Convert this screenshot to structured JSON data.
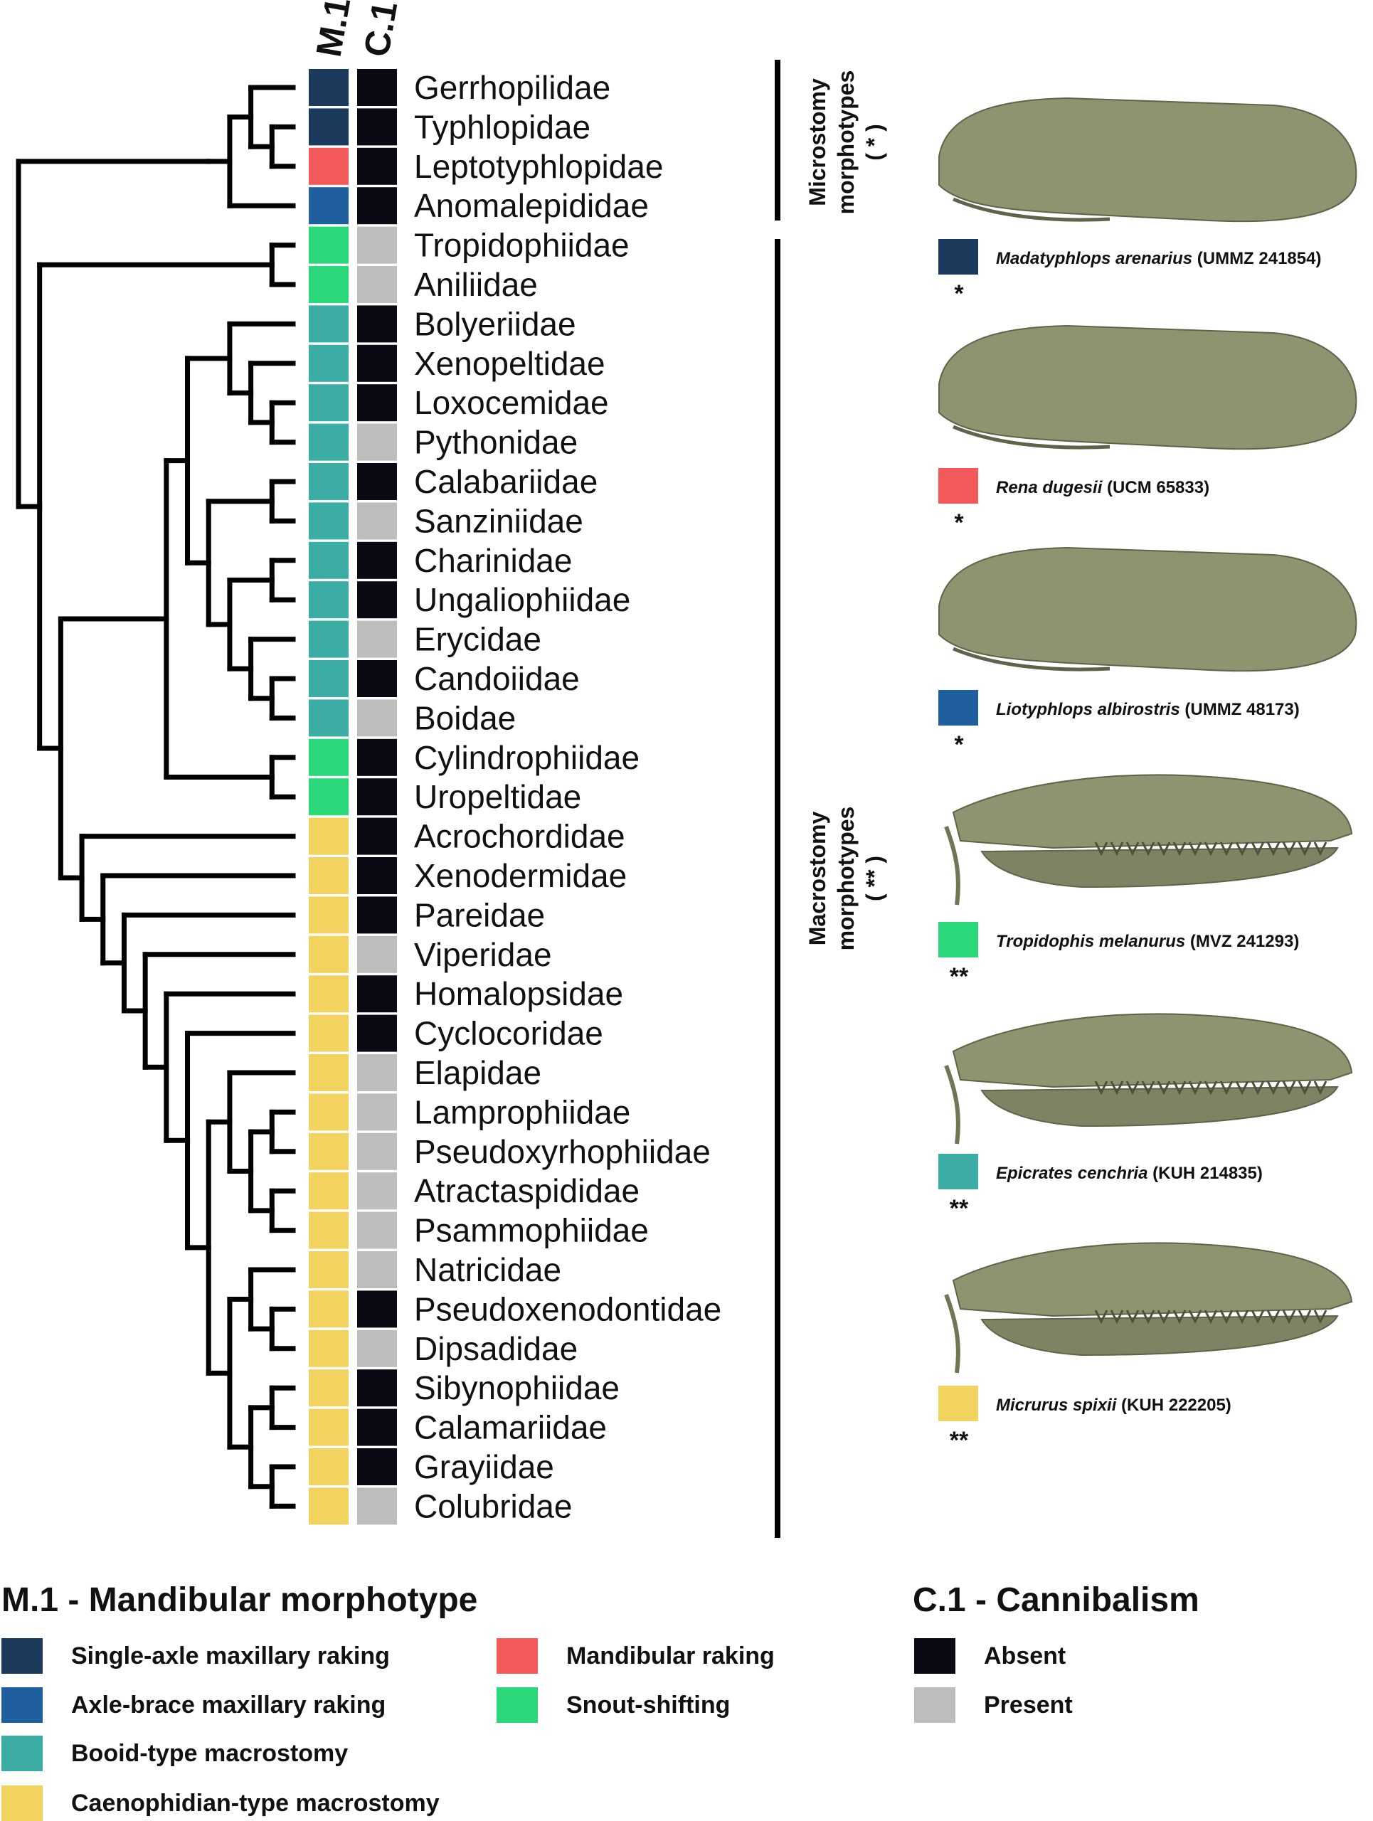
{
  "columns": {
    "m1": "M.1",
    "c1": "C.1"
  },
  "colors": {
    "single_axle": "#1b3a5c",
    "axle_brace": "#1f5f9e",
    "booid": "#3bada5",
    "caenophidian": "#f2d35f",
    "mandibular": "#f4595a",
    "snout": "#2ad87a",
    "absent": "#0a0a14",
    "present": "#bdbdbd",
    "skull": "#8e9470"
  },
  "taxa": [
    {
      "name": "Gerrhopilidae",
      "m1": "single_axle",
      "c1": "absent"
    },
    {
      "name": "Typhlopidae",
      "m1": "single_axle",
      "c1": "absent"
    },
    {
      "name": "Leptotyphlopidae",
      "m1": "mandibular",
      "c1": "absent"
    },
    {
      "name": "Anomalepididae",
      "m1": "axle_brace",
      "c1": "absent"
    },
    {
      "name": "Tropidophiidae",
      "m1": "snout",
      "c1": "present"
    },
    {
      "name": "Aniliidae",
      "m1": "snout",
      "c1": "present"
    },
    {
      "name": "Bolyeriidae",
      "m1": "booid",
      "c1": "absent"
    },
    {
      "name": "Xenopeltidae",
      "m1": "booid",
      "c1": "absent"
    },
    {
      "name": "Loxocemidae",
      "m1": "booid",
      "c1": "absent"
    },
    {
      "name": "Pythonidae",
      "m1": "booid",
      "c1": "present"
    },
    {
      "name": "Calabariidae",
      "m1": "booid",
      "c1": "absent"
    },
    {
      "name": "Sanziniidae",
      "m1": "booid",
      "c1": "present"
    },
    {
      "name": "Charinidae",
      "m1": "booid",
      "c1": "absent"
    },
    {
      "name": "Ungaliophiidae",
      "m1": "booid",
      "c1": "absent"
    },
    {
      "name": "Erycidae",
      "m1": "booid",
      "c1": "present"
    },
    {
      "name": "Candoiidae",
      "m1": "booid",
      "c1": "absent"
    },
    {
      "name": "Boidae",
      "m1": "booid",
      "c1": "present"
    },
    {
      "name": "Cylindrophiidae",
      "m1": "snout",
      "c1": "absent"
    },
    {
      "name": "Uropeltidae",
      "m1": "snout",
      "c1": "absent"
    },
    {
      "name": "Acrochordidae",
      "m1": "caenophidian",
      "c1": "absent"
    },
    {
      "name": "Xenodermidae",
      "m1": "caenophidian",
      "c1": "absent"
    },
    {
      "name": "Pareidae",
      "m1": "caenophidian",
      "c1": "absent"
    },
    {
      "name": "Viperidae",
      "m1": "caenophidian",
      "c1": "present"
    },
    {
      "name": "Homalopsidae",
      "m1": "caenophidian",
      "c1": "absent"
    },
    {
      "name": "Cyclocoridae",
      "m1": "caenophidian",
      "c1": "absent"
    },
    {
      "name": "Elapidae",
      "m1": "caenophidian",
      "c1": "present"
    },
    {
      "name": "Lamprophiidae",
      "m1": "caenophidian",
      "c1": "present"
    },
    {
      "name": "Pseudoxyrhophiidae",
      "m1": "caenophidian",
      "c1": "present"
    },
    {
      "name": "Atractaspididae",
      "m1": "caenophidian",
      "c1": "present"
    },
    {
      "name": "Psammophiidae",
      "m1": "caenophidian",
      "c1": "present"
    },
    {
      "name": "Natricidae",
      "m1": "caenophidian",
      "c1": "present"
    },
    {
      "name": "Pseudoxenodontidae",
      "m1": "caenophidian",
      "c1": "absent"
    },
    {
      "name": "Dipsadidae",
      "m1": "caenophidian",
      "c1": "present"
    },
    {
      "name": "Sibynophiidae",
      "m1": "caenophidian",
      "c1": "absent"
    },
    {
      "name": "Calamariidae",
      "m1": "caenophidian",
      "c1": "absent"
    },
    {
      "name": "Grayiidae",
      "m1": "caenophidian",
      "c1": "absent"
    },
    {
      "name": "Colubridae",
      "m1": "caenophidian",
      "c1": "present"
    }
  ],
  "tree": [
    [
      [
        [
          "Gerrhopilidae",
          [
            "Typhlopidae",
            "Leptotyphlopidae"
          ]
        ],
        "Anomalepididae"
      ]
    ],
    [
      [
        "Tropidophiidae",
        "Aniliidae"
      ],
      [
        [
          [
            [
              "Bolyeriidae",
              [
                "Xenopeltidae",
                [
                  "Loxocemidae",
                  "Pythonidae"
                ]
              ]
            ],
            [
              [
                "Calabariidae",
                "Sanziniidae"
              ],
              [
                [
                  "Charinidae",
                  "Ungaliophiidae"
                ],
                [
                  "Erycidae",
                  [
                    "Candoiidae",
                    "Boidae"
                  ]
                ]
              ]
            ]
          ],
          [
            "Cylindrophiidae",
            "Uropeltidae"
          ]
        ],
        [
          "Acrochordidae",
          [
            "Xenodermidae",
            [
              "Pareidae",
              [
                "Viperidae",
                [
                  "Homalopsidae",
                  [
                    "Cyclocoridae",
                    [
                      [
                        "Elapidae",
                        [
                          [
                            "Lamprophiidae",
                            "Pseudoxyrhophiidae"
                          ],
                          [
                            "Atractaspididae",
                            "Psammophiidae"
                          ]
                        ]
                      ],
                      [
                        [
                          "Natricidae",
                          [
                            "Pseudoxenodontidae",
                            "Dipsadidae"
                          ]
                        ],
                        [
                          [
                            "Sibynophiidae",
                            "Calamariidae"
                          ],
                          [
                            "Grayiidae",
                            "Colubridae"
                          ]
                        ]
                      ]
                    ]
                  ]
                ]
              ]
            ]
          ]
        ]
      ]
    ]
  ],
  "groups": [
    {
      "line1": "Microstomy",
      "line2": "morphotypes",
      "line3": "( * )"
    },
    {
      "line1": "Macrostomy",
      "line2": "morphotypes",
      "line3": "( ** )"
    }
  ],
  "specimens": [
    {
      "species": "Madatyphlops arenarius",
      "code": "(UMMZ 241854)",
      "color": "single_axle",
      "stars": "*"
    },
    {
      "species": "Rena dugesii",
      "code": "(UCM 65833)",
      "color": "mandibular",
      "stars": "*"
    },
    {
      "species": "Liotyphlops albirostris",
      "code": "(UMMZ 48173)",
      "color": "axle_brace",
      "stars": "*"
    },
    {
      "species": "Tropidophis melanurus",
      "code": "(MVZ 241293)",
      "color": "snout",
      "stars": "**"
    },
    {
      "species": "Epicrates cenchria",
      "code": "(KUH 214835)",
      "color": "booid",
      "stars": "**"
    },
    {
      "species": "Micrurus spixii",
      "code": "(KUH 222205)",
      "color": "caenophidian",
      "stars": "**"
    }
  ],
  "legend": {
    "m1_title": "M.1 - Mandibular morphotype",
    "c1_title": "C.1 - Cannibalism",
    "m1_items": [
      {
        "label": "Single-axle maxillary raking",
        "color": "single_axle"
      },
      {
        "label": "Axle-brace maxillary raking",
        "color": "axle_brace"
      },
      {
        "label": "Booid-type macrostomy",
        "color": "booid"
      },
      {
        "label": "Caenophidian-type macrostomy",
        "color": "caenophidian"
      },
      {
        "label": "Mandibular raking",
        "color": "mandibular"
      },
      {
        "label": "Snout-shifting",
        "color": "snout"
      }
    ],
    "c1_items": [
      {
        "label": "Absent",
        "color": "absent"
      },
      {
        "label": "Present",
        "color": "present"
      }
    ]
  }
}
